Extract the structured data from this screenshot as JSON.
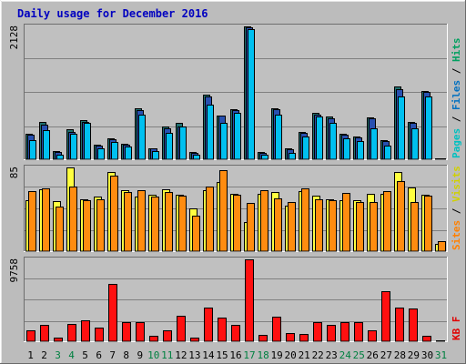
{
  "chart_data": {
    "type": "bar",
    "title": "Daily usage for December 2016",
    "categories": [
      "1",
      "2",
      "3",
      "4",
      "5",
      "6",
      "7",
      "8",
      "9",
      "10",
      "11",
      "12",
      "13",
      "14",
      "15",
      "16",
      "17",
      "18",
      "19",
      "20",
      "21",
      "22",
      "23",
      "24",
      "25",
      "26",
      "27",
      "28",
      "29",
      "30",
      "31"
    ],
    "weekend_days": [
      "3",
      "4",
      "10",
      "11",
      "17",
      "18",
      "24",
      "25",
      "31"
    ],
    "panels": [
      {
        "name": "hits-panel",
        "ymax_label": "2128",
        "ymax": 2128,
        "legend": [
          {
            "text": "Pages",
            "color": "#00c0c0"
          },
          {
            "text": " / ",
            "color": "#000000"
          },
          {
            "text": "Files",
            "color": "#0070c0"
          },
          {
            "text": " / ",
            "color": "#000000"
          },
          {
            "text": "Hits",
            "color": "#00a060"
          }
        ],
        "series": [
          {
            "name": "Hits",
            "color": "#207070",
            "values": [
              410,
              600,
              130,
              480,
              630,
              240,
              340,
              250,
              820,
              180,
              520,
              580,
              110,
              1040,
              700,
              800,
              2128,
              110,
              820,
              170,
              440,
              740,
              680,
              410,
              360,
              670,
              300,
              1170,
              600,
              1100,
              20
            ]
          },
          {
            "name": "Files",
            "color": "#2850b0",
            "values": [
              390,
              560,
              120,
              440,
              600,
              220,
              320,
              240,
              780,
              170,
              500,
              520,
              100,
              1000,
              700,
              780,
              2110,
              100,
              800,
              160,
              420,
              710,
              660,
              400,
              350,
              650,
              290,
              1120,
              580,
              1080,
              18
            ]
          },
          {
            "name": "Pages",
            "color": "#00c0f0",
            "values": [
              300,
              460,
              80,
              410,
              590,
              180,
              270,
              200,
              710,
              130,
              420,
              520,
              80,
              870,
              590,
              740,
              2090,
              70,
              720,
              100,
              370,
              680,
              580,
              340,
              290,
              490,
              220,
              1000,
              500,
              1000,
              15
            ]
          }
        ]
      },
      {
        "name": "visits-panel",
        "ymax_label": "85",
        "ymax": 85,
        "legend": [
          {
            "text": "Sites",
            "color": "#ff8000"
          },
          {
            "text": " / ",
            "color": "#000000"
          },
          {
            "text": "Visits",
            "color": "#d0d000"
          }
        ],
        "series": [
          {
            "name": "Visits",
            "color": "#ffff40",
            "values": [
              52,
              63,
              51,
              85,
              53,
              55,
              80,
              62,
              55,
              57,
              63,
              57,
              43,
              62,
              70,
              58,
              30,
              58,
              60,
              46,
              61,
              56,
              53,
              52,
              52,
              58,
              58,
              80,
              65,
              57,
              7
            ]
          },
          {
            "name": "Sites",
            "color": "#ff8c10",
            "values": [
              61,
              64,
              45,
              66,
              52,
              53,
              77,
              60,
              62,
              55,
              60,
              56,
              36,
              66,
              82,
              57,
              49,
              62,
              54,
              50,
              64,
              53,
              52,
              59,
              50,
              50,
              61,
              71,
              50,
              56,
              10
            ]
          }
        ]
      },
      {
        "name": "kbytes-panel",
        "ymax_label": "9758",
        "ymax": 9758,
        "legend": [
          {
            "text": "KB F",
            "color": "#e00000"
          }
        ],
        "series": [
          {
            "name": "KB F",
            "color": "#ff1010",
            "values": [
              1300,
              2000,
              400,
              2100,
              2500,
              1600,
              6800,
              2300,
              2300,
              600,
              1300,
              3000,
              400,
              4000,
              2800,
              1900,
              9758,
              800,
              2900,
              1000,
              900,
              2300,
              1900,
              2300,
              2300,
              1300,
              6000,
              4000,
              3900,
              600,
              100
            ]
          }
        ]
      }
    ]
  }
}
